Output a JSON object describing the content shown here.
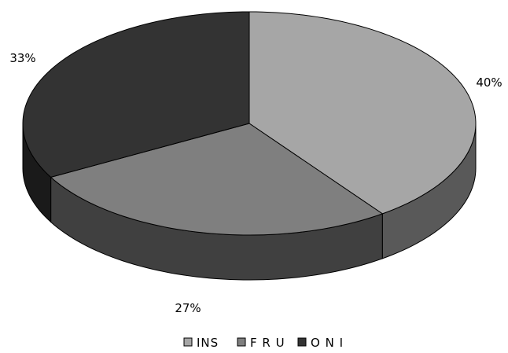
{
  "chart_data": {
    "type": "pie",
    "style": "3d",
    "categories": [
      "INS",
      "FRU",
      "ONI"
    ],
    "values": [
      40,
      27,
      33
    ],
    "data_labels": [
      "40%",
      "27%",
      "33%"
    ],
    "legend": {
      "placement": "bottom",
      "entries": [
        "INS",
        "F R U",
        "O N I"
      ]
    },
    "colors": {
      "INS": "#a6a6a6",
      "FRU": "#7f7f7f",
      "ONI": "#333333"
    }
  }
}
